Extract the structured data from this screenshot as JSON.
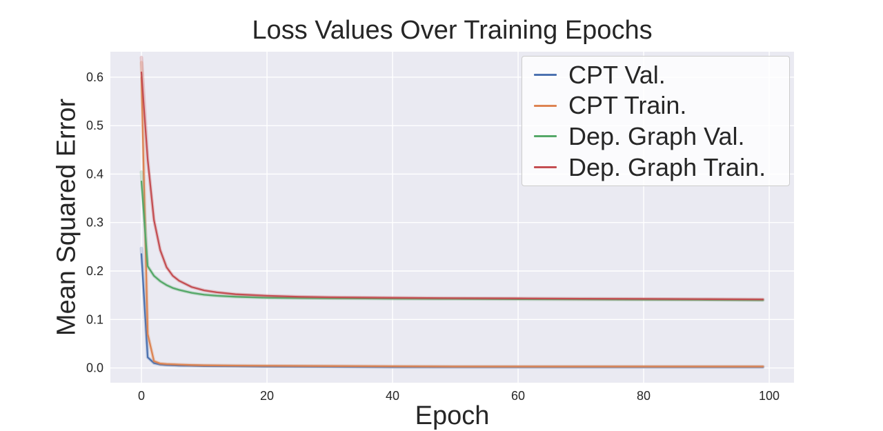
{
  "chart_data": {
    "type": "line",
    "title": "Loss Values Over Training Epochs",
    "xlabel": "Epoch",
    "ylabel": "Mean Squared Error",
    "xlim": [
      -4.95,
      103.95
    ],
    "ylim": [
      -0.0305,
      0.6525
    ],
    "grid": true,
    "plot_bg": "#eaeaf2",
    "grid_color": "#ffffff",
    "text_color": "#262626",
    "legend_position": "upper right",
    "xticks": [
      {
        "v": 0,
        "label": "0"
      },
      {
        "v": 20,
        "label": "20"
      },
      {
        "v": 40,
        "label": "40"
      },
      {
        "v": 60,
        "label": "60"
      },
      {
        "v": 80,
        "label": "80"
      },
      {
        "v": 100,
        "label": "100"
      }
    ],
    "yticks": [
      {
        "v": 0.0,
        "label": "0.0"
      },
      {
        "v": 0.1,
        "label": "0.1"
      },
      {
        "v": 0.2,
        "label": "0.2"
      },
      {
        "v": 0.3,
        "label": "0.3"
      },
      {
        "v": 0.4,
        "label": "0.4"
      },
      {
        "v": 0.5,
        "label": "0.5"
      },
      {
        "v": 0.6,
        "label": "0.6"
      }
    ],
    "series": [
      {
        "name": "CPT Val.",
        "color": "#4c72b0",
        "points": [
          [
            0,
            0.235
          ],
          [
            1,
            0.022
          ],
          [
            2,
            0.01
          ],
          [
            3,
            0.007
          ],
          [
            4,
            0.006
          ],
          [
            6,
            0.005
          ],
          [
            8,
            0.0045
          ],
          [
            10,
            0.004
          ],
          [
            15,
            0.0035
          ],
          [
            20,
            0.003
          ],
          [
            30,
            0.0025
          ],
          [
            40,
            0.002
          ],
          [
            50,
            0.002
          ],
          [
            60,
            0.002
          ],
          [
            70,
            0.002
          ],
          [
            80,
            0.002
          ],
          [
            90,
            0.002
          ],
          [
            99,
            0.002
          ]
        ]
      },
      {
        "name": "CPT Train.",
        "color": "#dd8452",
        "points": [
          [
            0,
            0.6
          ],
          [
            1,
            0.07
          ],
          [
            2,
            0.014
          ],
          [
            3,
            0.009
          ],
          [
            4,
            0.008
          ],
          [
            6,
            0.007
          ],
          [
            8,
            0.006
          ],
          [
            10,
            0.0055
          ],
          [
            15,
            0.005
          ],
          [
            20,
            0.0045
          ],
          [
            30,
            0.004
          ],
          [
            40,
            0.0035
          ],
          [
            50,
            0.003
          ],
          [
            60,
            0.003
          ],
          [
            70,
            0.003
          ],
          [
            80,
            0.003
          ],
          [
            90,
            0.003
          ],
          [
            99,
            0.003
          ]
        ]
      },
      {
        "name": "Dep. Graph Val.",
        "color": "#55a868",
        "points": [
          [
            0,
            0.385
          ],
          [
            1,
            0.21
          ],
          [
            2,
            0.19
          ],
          [
            3,
            0.179
          ],
          [
            4,
            0.171
          ],
          [
            5,
            0.165
          ],
          [
            6,
            0.161
          ],
          [
            8,
            0.155
          ],
          [
            10,
            0.151
          ],
          [
            12,
            0.149
          ],
          [
            15,
            0.147
          ],
          [
            20,
            0.145
          ],
          [
            25,
            0.1442
          ],
          [
            30,
            0.1437
          ],
          [
            40,
            0.143
          ],
          [
            50,
            0.1425
          ],
          [
            60,
            0.142
          ],
          [
            70,
            0.1415
          ],
          [
            80,
            0.141
          ],
          [
            90,
            0.1405
          ],
          [
            99,
            0.14
          ]
        ]
      },
      {
        "name": "Dep. Graph Train.",
        "color": "#c44e52",
        "points": [
          [
            0,
            0.61
          ],
          [
            1,
            0.43
          ],
          [
            2,
            0.305
          ],
          [
            3,
            0.243
          ],
          [
            4,
            0.208
          ],
          [
            5,
            0.19
          ],
          [
            6,
            0.18
          ],
          [
            8,
            0.167
          ],
          [
            10,
            0.16
          ],
          [
            12,
            0.156
          ],
          [
            15,
            0.152
          ],
          [
            20,
            0.149
          ],
          [
            25,
            0.147
          ],
          [
            30,
            0.146
          ],
          [
            40,
            0.1448
          ],
          [
            50,
            0.144
          ],
          [
            60,
            0.1435
          ],
          [
            70,
            0.143
          ],
          [
            80,
            0.1425
          ],
          [
            90,
            0.142
          ],
          [
            99,
            0.1415
          ]
        ]
      }
    ]
  }
}
